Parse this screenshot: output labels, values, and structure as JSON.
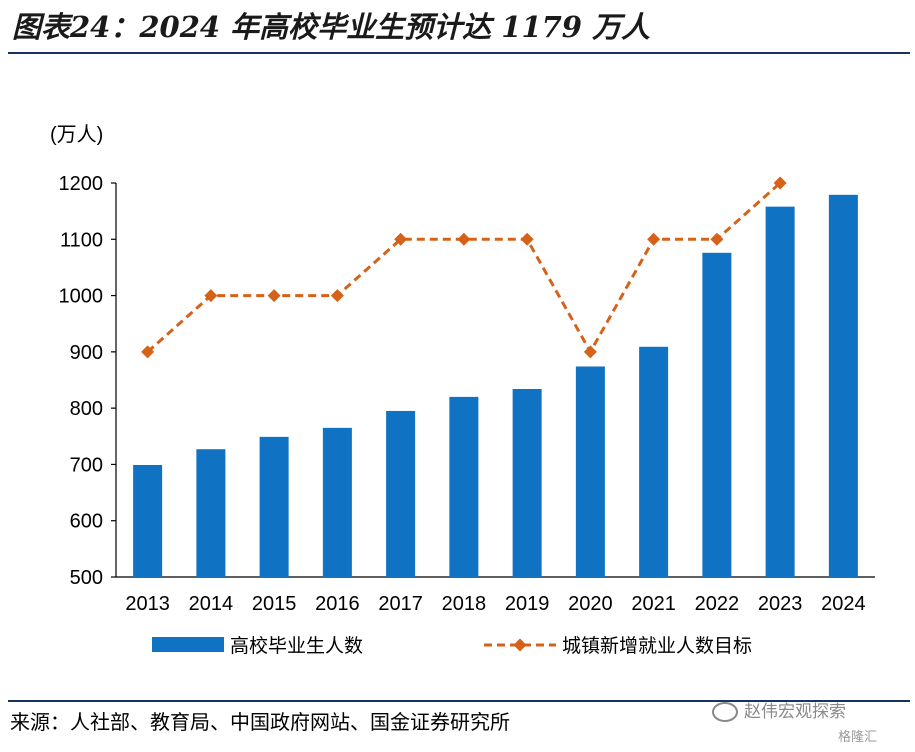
{
  "page": {
    "title": "图表24：2024 年高校毕业生预计达 1179 万人",
    "source": "来源：人社部、教育局、中国政府网站、国金证券研究所",
    "watermark": "赵伟宏观探索",
    "watermark_brand": "格隆汇"
  },
  "chart_data": {
    "type": "bar",
    "unit_label": "(万人)",
    "categories": [
      "2013",
      "2014",
      "2015",
      "2016",
      "2017",
      "2018",
      "2019",
      "2020",
      "2021",
      "2022",
      "2023",
      "2024"
    ],
    "series": [
      {
        "name": "高校毕业生人数",
        "type": "bar",
        "color": "#0f72c2",
        "values": [
          699,
          727,
          749,
          765,
          795,
          820,
          834,
          874,
          909,
          1076,
          1158,
          1179
        ]
      },
      {
        "name": "城镇新增就业人数目标",
        "type": "line",
        "style": "dashed",
        "marker": "diamond",
        "color": "#d6621a",
        "values": [
          900,
          1000,
          1000,
          1000,
          1100,
          1100,
          1100,
          900,
          1100,
          1100,
          1200,
          null
        ]
      }
    ],
    "ylim": [
      500,
      1200
    ],
    "yticks": [
      500,
      600,
      700,
      800,
      900,
      1000,
      1100,
      1200
    ],
    "grid": false,
    "legend_position": "bottom"
  }
}
